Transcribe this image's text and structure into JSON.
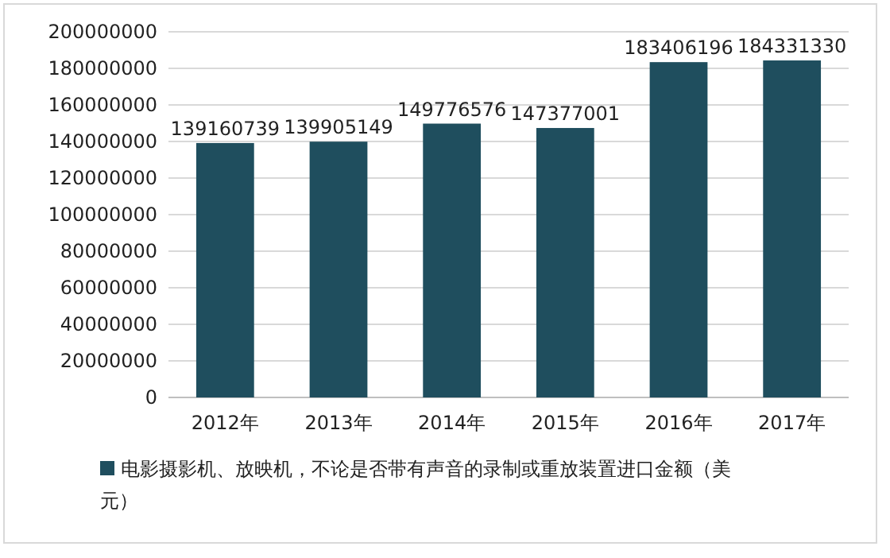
{
  "chart_data": {
    "type": "bar",
    "categories": [
      "2012年",
      "2013年",
      "2014年",
      "2015年",
      "2016年",
      "2017年"
    ],
    "series": [
      {
        "name": "电影摄影机、放映机，不论是否带有声音的录制或重放装置进口金额（美元）",
        "color": "#1f4e5e",
        "values": [
          139160739,
          139905149,
          149776576,
          147377001,
          183406196,
          184331330
        ]
      }
    ],
    "ylim": [
      0,
      200000000
    ],
    "yticks": [
      0,
      20000000,
      40000000,
      60000000,
      80000000,
      100000000,
      120000000,
      140000000,
      160000000,
      180000000,
      200000000
    ],
    "grid": "y",
    "legend": "bottom",
    "data_labels": true
  }
}
